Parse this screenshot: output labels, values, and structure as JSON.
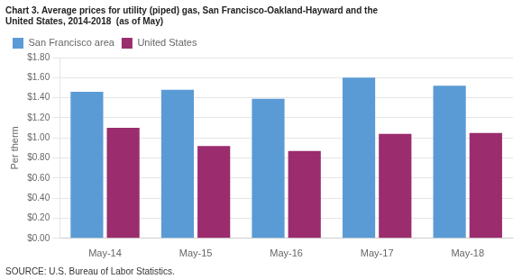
{
  "chart_data": {
    "type": "bar",
    "title": "Chart 3. Average prices for utility (piped) gas, San Francisco-Oakland-Hayward and the\nUnited States, 2014-2018  (as of May)",
    "ylabel": "Per therm",
    "source": "SOURCE: U.S. Bureau of Labor Statistics.",
    "categories": [
      "May-14",
      "May-15",
      "May-16",
      "May-17",
      "May-18"
    ],
    "series": [
      {
        "name": "San Francisco area",
        "color": "#5B9BD5",
        "values": [
          1.46,
          1.48,
          1.39,
          1.6,
          1.52
        ]
      },
      {
        "name": "United States",
        "color": "#9B2C6E",
        "values": [
          1.1,
          0.92,
          0.87,
          1.04,
          1.05
        ]
      }
    ],
    "ylim": [
      0,
      1.8
    ],
    "yticks": [
      {
        "value": 0.0,
        "label": "$0.00"
      },
      {
        "value": 0.2,
        "label": "$0.20"
      },
      {
        "value": 0.4,
        "label": "$0.40"
      },
      {
        "value": 0.6,
        "label": "$0.60"
      },
      {
        "value": 0.8,
        "label": "$0.80"
      },
      {
        "value": 1.0,
        "label": "$1.00"
      },
      {
        "value": 1.2,
        "label": "$1.20"
      },
      {
        "value": 1.4,
        "label": "$1.40"
      },
      {
        "value": 1.6,
        "label": "$1.60"
      },
      {
        "value": 1.8,
        "label": "$1.80"
      }
    ],
    "grid": true,
    "legend": "upper left"
  }
}
